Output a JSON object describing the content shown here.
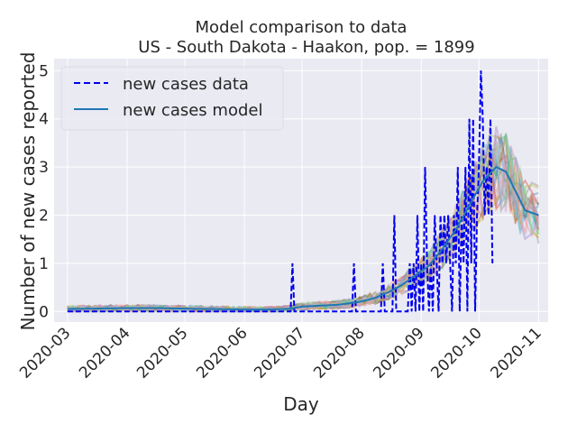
{
  "chart_data": {
    "type": "line",
    "title": "Model comparison to data",
    "subtitle": "US - South Dakota - Haakon, pop. = 1899",
    "xlabel": "Day",
    "ylabel": "Number of new cases reported",
    "x_ticks": [
      "2020-03",
      "2020-04",
      "2020-05",
      "2020-06",
      "2020-07",
      "2020-08",
      "2020-09",
      "2020-10",
      "2020-11"
    ],
    "y_ticks": [
      "0",
      "1",
      "2",
      "3",
      "4",
      "5"
    ],
    "xlim": [
      "2020-02-23",
      "2020-11-06"
    ],
    "ylim": [
      -0.22,
      5.25
    ],
    "grid": true,
    "legend_position": "upper-left",
    "series": [
      {
        "name": "new cases data",
        "style": "dashed",
        "color": "#0000ee",
        "points": [
          [
            "2020-03-01",
            0
          ],
          [
            "2020-06-25",
            0
          ],
          [
            "2020-06-26",
            1
          ],
          [
            "2020-06-27",
            0
          ],
          [
            "2020-07-27",
            0
          ],
          [
            "2020-07-28",
            1
          ],
          [
            "2020-07-29",
            0
          ],
          [
            "2020-08-11",
            0
          ],
          [
            "2020-08-12",
            1
          ],
          [
            "2020-08-13",
            0
          ],
          [
            "2020-08-17",
            0
          ],
          [
            "2020-08-18",
            2
          ],
          [
            "2020-08-19",
            0
          ],
          [
            "2020-08-22",
            0
          ],
          [
            "2020-08-25",
            0
          ],
          [
            "2020-08-26",
            1
          ],
          [
            "2020-08-27",
            0
          ],
          [
            "2020-08-28",
            1
          ],
          [
            "2020-08-29",
            0
          ],
          [
            "2020-08-30",
            2
          ],
          [
            "2020-08-31",
            0
          ],
          [
            "2020-09-01",
            1
          ],
          [
            "2020-09-02",
            0
          ],
          [
            "2020-09-03",
            3
          ],
          [
            "2020-09-04",
            1
          ],
          [
            "2020-09-05",
            0
          ],
          [
            "2020-09-06",
            1
          ],
          [
            "2020-09-07",
            0
          ],
          [
            "2020-09-08",
            2
          ],
          [
            "2020-09-09",
            1
          ],
          [
            "2020-09-10",
            0
          ],
          [
            "2020-09-11",
            2
          ],
          [
            "2020-09-12",
            1
          ],
          [
            "2020-09-13",
            2
          ],
          [
            "2020-09-14",
            1
          ],
          [
            "2020-09-15",
            2
          ],
          [
            "2020-09-16",
            1
          ],
          [
            "2020-09-17",
            0
          ],
          [
            "2020-09-18",
            2
          ],
          [
            "2020-09-19",
            1
          ],
          [
            "2020-09-20",
            3
          ],
          [
            "2020-09-21",
            0
          ],
          [
            "2020-09-22",
            2
          ],
          [
            "2020-09-23",
            1
          ],
          [
            "2020-09-24",
            3
          ],
          [
            "2020-09-25",
            0
          ],
          [
            "2020-09-26",
            4
          ],
          [
            "2020-09-27",
            1
          ],
          [
            "2020-09-28",
            4
          ],
          [
            "2020-09-29",
            0
          ],
          [
            "2020-09-30",
            2
          ],
          [
            "2020-10-01",
            3
          ],
          [
            "2020-10-02",
            5
          ],
          [
            "2020-10-03",
            4
          ],
          [
            "2020-10-04",
            2
          ],
          [
            "2020-10-05",
            3
          ],
          [
            "2020-10-06",
            2
          ],
          [
            "2020-10-07",
            4
          ],
          [
            "2020-10-08",
            1
          ]
        ]
      },
      {
        "name": "new cases model",
        "style": "solid",
        "color": "#1f77b4",
        "points": [
          [
            "2020-03-01",
            0.05
          ],
          [
            "2020-03-15",
            0.06
          ],
          [
            "2020-04-01",
            0.07
          ],
          [
            "2020-04-15",
            0.07
          ],
          [
            "2020-05-01",
            0.06
          ],
          [
            "2020-05-15",
            0.05
          ],
          [
            "2020-06-01",
            0.04
          ],
          [
            "2020-06-15",
            0.04
          ],
          [
            "2020-06-25",
            0.06
          ],
          [
            "2020-07-01",
            0.1
          ],
          [
            "2020-07-10",
            0.12
          ],
          [
            "2020-07-20",
            0.14
          ],
          [
            "2020-07-31",
            0.2
          ],
          [
            "2020-08-08",
            0.28
          ],
          [
            "2020-08-15",
            0.4
          ],
          [
            "2020-08-22",
            0.55
          ],
          [
            "2020-08-29",
            0.75
          ],
          [
            "2020-09-05",
            0.95
          ],
          [
            "2020-09-12",
            1.3
          ],
          [
            "2020-09-19",
            1.7
          ],
          [
            "2020-09-26",
            2.2
          ],
          [
            "2020-10-03",
            2.7
          ],
          [
            "2020-10-10",
            3.0
          ],
          [
            "2020-10-15",
            2.9
          ],
          [
            "2020-10-20",
            2.5
          ],
          [
            "2020-10-25",
            2.1
          ],
          [
            "2020-11-01",
            2.0
          ]
        ]
      }
    ],
    "ensemble": {
      "colors": [
        "#1f77b4",
        "#ff7f0e",
        "#2ca02c",
        "#d62728",
        "#9467bd",
        "#8c564b",
        "#e377c2",
        "#7f7f7f",
        "#bcbd22",
        "#17becf",
        "#aec7e8",
        "#98df8a",
        "#ff9896",
        "#c5b0d5"
      ]
    }
  }
}
